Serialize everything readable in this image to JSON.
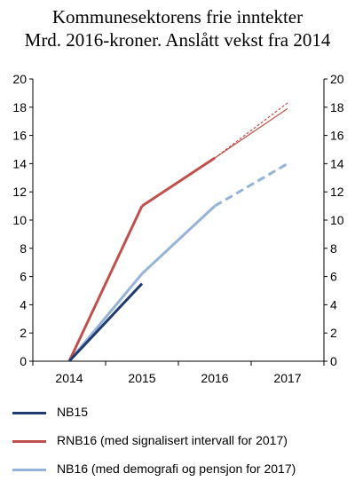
{
  "chart_data": {
    "type": "line",
    "title": [
      "Kommunesektorens frie inntekter",
      "Mrd. 2016-kroner. Anslått vekst fra 2014"
    ],
    "categories": [
      "2014",
      "2015",
      "2016",
      "2017"
    ],
    "ylim": [
      0,
      20
    ],
    "yticks": [
      0,
      2,
      4,
      6,
      8,
      10,
      12,
      14,
      16,
      18,
      20
    ],
    "y_axis_right": true,
    "grid": false,
    "legend_placement": "bottom",
    "series": [
      {
        "name": "NB15",
        "color": "#1f3b6f",
        "values": [
          0,
          5.5,
          null,
          null
        ]
      },
      {
        "name": "RNB16 (med signalisert intervall for 2017)",
        "color": "#c0504d",
        "values": [
          0,
          11,
          14.4,
          18
        ],
        "interval_2017": [
          17.9,
          18.3
        ]
      },
      {
        "name": "NB16 (med demografi og pensjon for 2017)",
        "color": "#95b3d7",
        "values": [
          0,
          6.2,
          11,
          14
        ],
        "dashed_segment": [
          "2016",
          "2017"
        ]
      }
    ]
  }
}
